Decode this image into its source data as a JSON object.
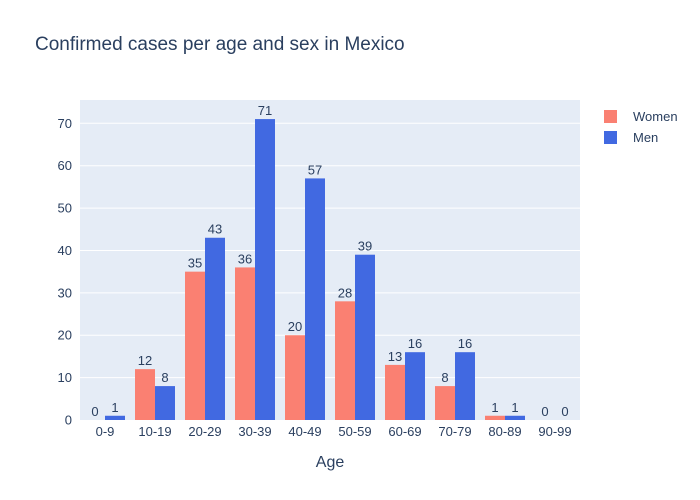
{
  "chart_data": {
    "type": "bar",
    "title": "Confirmed cases per age and sex in Mexico",
    "xlabel": "Age",
    "ylabel": "",
    "categories": [
      "0-9",
      "10-19",
      "20-29",
      "30-39",
      "40-49",
      "50-59",
      "60-69",
      "70-79",
      "80-89",
      "90-99"
    ],
    "series": [
      {
        "name": "Women",
        "color": "#fa8072",
        "values": [
          0,
          12,
          35,
          36,
          20,
          28,
          13,
          8,
          1,
          0
        ]
      },
      {
        "name": "Men",
        "color": "#4169e1",
        "values": [
          1,
          8,
          43,
          71,
          57,
          39,
          16,
          16,
          1,
          0
        ]
      }
    ],
    "ylim": [
      0,
      75.5
    ],
    "yticks": [
      0,
      10,
      20,
      30,
      40,
      50,
      60,
      70
    ],
    "grid": true,
    "plot_background": "#e5ecf6",
    "legend_position": "top-right",
    "show_data_labels": true
  }
}
